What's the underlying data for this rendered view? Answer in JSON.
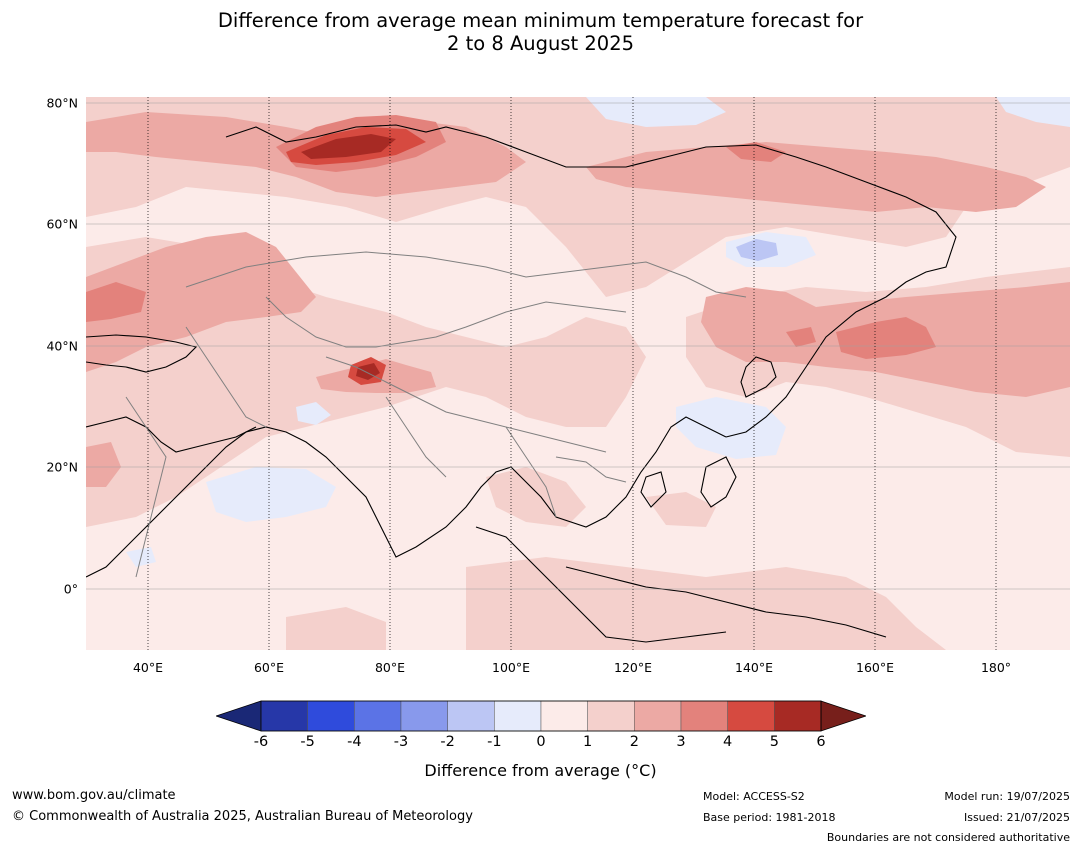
{
  "title": {
    "line1": "Difference from average mean minimum temperature forecast for",
    "line2": "2 to 8 August 2025"
  },
  "map": {
    "region": "Asia",
    "projection": "equirectangular",
    "lon_range": [
      30,
      191
    ],
    "lat_range": [
      -10,
      81
    ],
    "lat_labels": [
      {
        "lat": 80,
        "text": "80°N"
      },
      {
        "lat": 60,
        "text": "60°N"
      },
      {
        "lat": 40,
        "text": "40°N"
      },
      {
        "lat": 20,
        "text": "20°N"
      },
      {
        "lat": 0,
        "text": "0°"
      }
    ],
    "lon_labels": [
      {
        "lon": 40,
        "text": "40°E"
      },
      {
        "lon": 60,
        "text": "60°E"
      },
      {
        "lon": 80,
        "text": "80°E"
      },
      {
        "lon": 100,
        "text": "100°E"
      },
      {
        "lon": 120,
        "text": "120°E"
      },
      {
        "lon": 140,
        "text": "140°E"
      },
      {
        "lon": 160,
        "text": "160°E"
      },
      {
        "lon": 180,
        "text": "180°"
      }
    ]
  },
  "colorbar": {
    "ticks": [
      "-6",
      "-5",
      "-4",
      "-3",
      "-2",
      "-1",
      "0",
      "1",
      "2",
      "3",
      "4",
      "5",
      "6"
    ],
    "colors": [
      "#2637a8",
      "#2f4bdc",
      "#5b73e6",
      "#8899ec",
      "#bcc6f4",
      "#e6ebfb",
      "#fcebe9",
      "#f4d0cc",
      "#eca9a4",
      "#e3827c",
      "#d64a40",
      "#a72a24"
    ],
    "extend_low_color": "#1a2876",
    "extend_high_color": "#771f1b",
    "label": "Difference from average (°C)"
  },
  "footer": {
    "website": "www.bom.gov.au/climate",
    "copyright": "© Commonwealth of Australia 2025, Australian Bureau of Meteorology",
    "model": "Model: ACCESS-S2",
    "base_period": "Base period: 1981-2018",
    "model_run": "Model run: 19/07/2025",
    "issued": "Issued: 21/07/2025",
    "disclaimer": "Boundaries are not considered authoritative"
  }
}
